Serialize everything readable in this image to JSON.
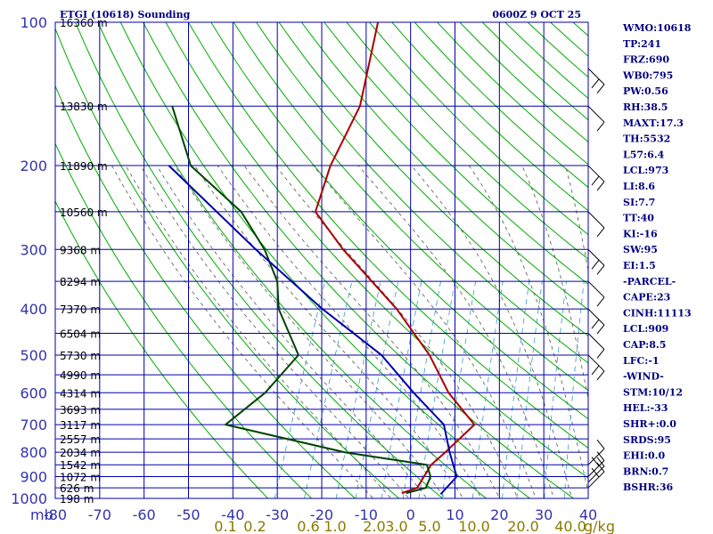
{
  "chart_data": {
    "type": "skew-t",
    "title": "ETGI (10618) Sounding",
    "datetime": "0600Z  9 OCT 25",
    "pressure_axis_unit": "mb",
    "pressure_ticks": [
      100,
      200,
      300,
      400,
      500,
      600,
      700,
      800,
      900,
      1000
    ],
    "temperature_ticks": [
      -80,
      -70,
      -60,
      -50,
      -40,
      -30,
      -20,
      -10,
      0,
      10,
      20,
      30,
      40
    ],
    "mixing_ratio_ticks": [
      "0.1",
      "0.2",
      "0.6",
      "1.0",
      "2.0",
      "3.0",
      "5.0",
      "10.0",
      "20.0",
      "40.0"
    ],
    "mixing_ratio_unit": "g/kg",
    "height_labels": [
      {
        "p": 100,
        "label": "16360 m"
      },
      {
        "p": 150,
        "label": "13830 m"
      },
      {
        "p": 200,
        "label": "11890 m"
      },
      {
        "p": 250,
        "label": "10560 m"
      },
      {
        "p": 300,
        "label": "9368 m"
      },
      {
        "p": 350,
        "label": "8294 m"
      },
      {
        "p": 400,
        "label": "7370 m"
      },
      {
        "p": 450,
        "label": "6504 m"
      },
      {
        "p": 500,
        "label": "5730 m"
      },
      {
        "p": 550,
        "label": "4990 m"
      },
      {
        "p": 600,
        "label": "4314 m"
      },
      {
        "p": 650,
        "label": "3693 m"
      },
      {
        "p": 700,
        "label": "3117 m"
      },
      {
        "p": 750,
        "label": "2557 m"
      },
      {
        "p": 800,
        "label": "2034 m"
      },
      {
        "p": 850,
        "label": "1542 m"
      },
      {
        "p": 900,
        "label": "1072 m"
      },
      {
        "p": 950,
        "label": "626 m"
      },
      {
        "p": 1000,
        "label": "198 m"
      }
    ],
    "series": [
      {
        "name": "temperature",
        "color": "#aa0000",
        "points": [
          [
            100,
            -64
          ],
          [
            150,
            -60
          ],
          [
            200,
            -61
          ],
          [
            250,
            -60
          ],
          [
            300,
            -50
          ],
          [
            400,
            -32
          ],
          [
            500,
            -20
          ],
          [
            600,
            -12
          ],
          [
            700,
            -3
          ],
          [
            800,
            -7
          ],
          [
            850,
            -9
          ],
          [
            950,
            -10
          ],
          [
            975,
            -13
          ]
        ]
      },
      {
        "name": "dewpoint",
        "color": "#004400",
        "points": [
          [
            150,
            -103
          ],
          [
            200,
            -93
          ],
          [
            250,
            -77
          ],
          [
            300,
            -68
          ],
          [
            350,
            -62
          ],
          [
            400,
            -59
          ],
          [
            500,
            -50
          ],
          [
            600,
            -54
          ],
          [
            700,
            -60
          ],
          [
            800,
            -30
          ],
          [
            850,
            -10
          ],
          [
            900,
            -8
          ],
          [
            950,
            -8
          ],
          [
            975,
            -12
          ]
        ]
      },
      {
        "name": "parcel",
        "color": "#0000aa",
        "points": [
          [
            200,
            -98
          ],
          [
            300,
            -70
          ],
          [
            400,
            -49
          ],
          [
            500,
            -31
          ],
          [
            600,
            -20
          ],
          [
            700,
            -10
          ],
          [
            800,
            -6
          ],
          [
            900,
            -2
          ],
          [
            980,
            -4
          ]
        ]
      }
    ],
    "wind_barbs": [
      {
        "p": 125
      },
      {
        "p": 150
      },
      {
        "p": 200
      },
      {
        "p": 250
      },
      {
        "p": 300
      },
      {
        "p": 350
      },
      {
        "p": 400
      },
      {
        "p": 450
      },
      {
        "p": 500
      },
      {
        "p": 850
      },
      {
        "p": 900
      },
      {
        "p": 925
      },
      {
        "p": 950
      }
    ]
  },
  "indices": [
    "WMO:10618",
    "TP:241",
    "FRZ:690",
    "WB0:795",
    "PW:0.56",
    "RH:38.5",
    "MAXT:17.3",
    "TH:5532",
    "L57:6.4",
    "LCL:973",
    "LI:8.6",
    "SI:7.7",
    "TT:40",
    "KI:-16",
    "SW:95",
    "EI:1.5",
    "-PARCEL-",
    "CAPE:23",
    "CINH:11113",
    "LCL:909",
    "CAP:8.5",
    "LFC:-1",
    "-WIND-",
    "STM:10/12",
    "HEL:-33",
    "SHR+:0.0",
    "SRDS:95",
    "EHI:0.0",
    "BRN:0.7",
    "BSHR:36"
  ],
  "colors": {
    "isobar": "#0000aa",
    "isotherm": "#0000aa",
    "dry_adiabat": "#00aa00",
    "moist_adiabat": "#555555",
    "mixing_ratio": "#3399cc",
    "barb": "#000000"
  }
}
